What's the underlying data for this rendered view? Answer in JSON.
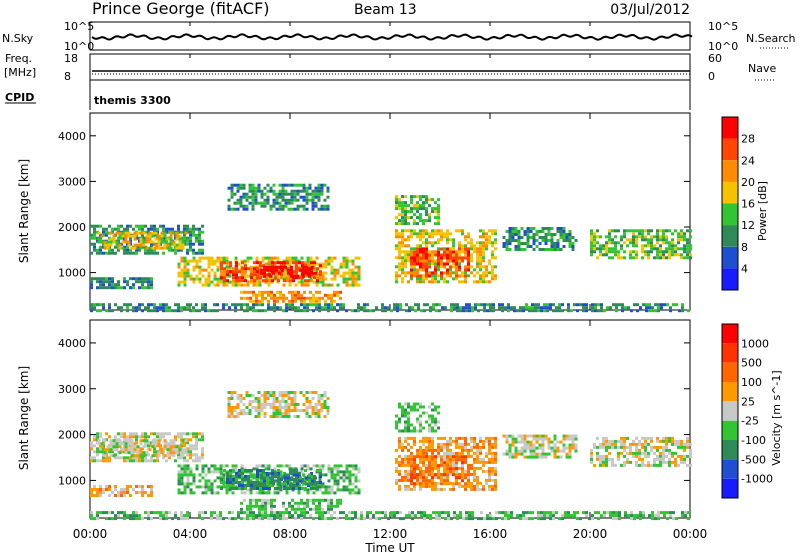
{
  "header": {
    "station": "Prince George (fitACF)",
    "beam": "Beam 13",
    "date": "03/Jul/2012"
  },
  "strips": {
    "nsky_label": "N.Sky",
    "nsky_ticks": [
      "10^5",
      "10^0"
    ],
    "nsearch_label": "N.Search",
    "nsearch_ticks": [
      "10^5",
      "10^0"
    ],
    "freq_label": "Freq.",
    "freq_unit": "[MHz]",
    "freq_ticks": [
      "18",
      "8"
    ],
    "nave_label": "Nave",
    "nave_ticks": [
      "60",
      "0"
    ],
    "cpid_label": "CPID",
    "cpid_value": "themis 3300"
  },
  "colors": {
    "power_scale": [
      "#1a1aff",
      "#1f4fd0",
      "#2e8b57",
      "#33c433",
      "#f5c200",
      "#ff8c00",
      "#ff4500",
      "#ff0000"
    ],
    "velocity_scale": [
      "#1a1aff",
      "#1f4fd0",
      "#2e8b57",
      "#33c433",
      "#c8c8c8",
      "#ff9900",
      "#ff6600",
      "#ff3300",
      "#ff0000"
    ],
    "line": "#000000"
  },
  "chart_data": [
    {
      "type": "heatmap",
      "title": "Power",
      "ylabel": "Slant Range [km]",
      "xlabel": "",
      "x_ticks": [
        "00:00",
        "04:00",
        "08:00",
        "12:00",
        "16:00",
        "20:00",
        "00:00"
      ],
      "y_ticks": [
        "1000",
        "2000",
        "3000",
        "4000"
      ],
      "xlim_hours": [
        0,
        24
      ],
      "ylim_km": [
        180,
        4500
      ],
      "colorbar_label": "Power [dB]",
      "colorbar_ticks": [
        "4",
        "8",
        "12",
        "16",
        "20",
        "24",
        "28"
      ],
      "echo_regions": [
        {
          "t0": 0.0,
          "t1": 24.0,
          "r0": 190,
          "r1": 330,
          "level": 2
        },
        {
          "t0": 0.0,
          "t1": 4.5,
          "r0": 1450,
          "r1": 2050,
          "level": 2
        },
        {
          "t0": 0.3,
          "t1": 3.8,
          "r0": 1550,
          "r1": 1900,
          "level": 4
        },
        {
          "t0": 0.0,
          "t1": 2.5,
          "r0": 650,
          "r1": 900,
          "level": 2
        },
        {
          "t0": 3.5,
          "t1": 10.8,
          "r0": 750,
          "r1": 1350,
          "level": 4
        },
        {
          "t0": 5.2,
          "t1": 9.2,
          "r0": 850,
          "r1": 1250,
          "level": 6
        },
        {
          "t0": 6.8,
          "t1": 9.0,
          "r0": 900,
          "r1": 1150,
          "level": 8
        },
        {
          "t0": 6.0,
          "t1": 10.0,
          "r0": 350,
          "r1": 600,
          "level": 5
        },
        {
          "t0": 5.5,
          "t1": 9.5,
          "r0": 2400,
          "r1": 2950,
          "level": 2
        },
        {
          "t0": 12.2,
          "t1": 16.2,
          "r0": 800,
          "r1": 1950,
          "level": 4
        },
        {
          "t0": 12.8,
          "t1": 15.2,
          "r0": 950,
          "r1": 1550,
          "level": 6
        },
        {
          "t0": 12.2,
          "t1": 14.0,
          "r0": 2100,
          "r1": 2700,
          "level": 3
        },
        {
          "t0": 16.5,
          "t1": 19.5,
          "r0": 1500,
          "r1": 2000,
          "level": 2
        },
        {
          "t0": 20.0,
          "t1": 24.0,
          "r0": 1300,
          "r1": 1950,
          "level": 3
        }
      ]
    },
    {
      "type": "heatmap",
      "title": "Velocity",
      "ylabel": "Slant Range [km]",
      "xlabel": "Time UT",
      "x_ticks": [
        "00:00",
        "04:00",
        "08:00",
        "12:00",
        "16:00",
        "20:00",
        "00:00"
      ],
      "y_ticks": [
        "1000",
        "2000",
        "3000",
        "4000"
      ],
      "xlim_hours": [
        0,
        24
      ],
      "ylim_km": [
        180,
        4500
      ],
      "colorbar_label": "Velocity [m s^-1]",
      "colorbar_ticks": [
        "1000",
        "500",
        "100",
        "25",
        "-25",
        "-100",
        "-500",
        "-1000"
      ],
      "echo_regions": [
        {
          "t0": 0.0,
          "t1": 24.0,
          "r0": 190,
          "r1": 330,
          "level": 3
        },
        {
          "t0": 0.0,
          "t1": 4.5,
          "r0": 1450,
          "r1": 2050,
          "level": 4
        },
        {
          "t0": 0.3,
          "t1": 3.8,
          "r0": 1550,
          "r1": 1900,
          "level": 4
        },
        {
          "t0": 0.0,
          "t1": 2.5,
          "r0": 650,
          "r1": 900,
          "level": 5
        },
        {
          "t0": 3.5,
          "t1": 10.8,
          "r0": 750,
          "r1": 1350,
          "level": 3
        },
        {
          "t0": 5.2,
          "t1": 9.2,
          "r0": 850,
          "r1": 1250,
          "level": 2
        },
        {
          "t0": 6.8,
          "t1": 9.0,
          "r0": 900,
          "r1": 1150,
          "level": 2
        },
        {
          "t0": 6.0,
          "t1": 10.0,
          "r0": 350,
          "r1": 600,
          "level": 3
        },
        {
          "t0": 5.5,
          "t1": 9.5,
          "r0": 2400,
          "r1": 2950,
          "level": 4
        },
        {
          "t0": 12.2,
          "t1": 16.2,
          "r0": 800,
          "r1": 1950,
          "level": 5
        },
        {
          "t0": 12.8,
          "t1": 15.2,
          "r0": 950,
          "r1": 1550,
          "level": 6
        },
        {
          "t0": 12.2,
          "t1": 14.0,
          "r0": 2100,
          "r1": 2700,
          "level": 3
        },
        {
          "t0": 16.5,
          "t1": 19.5,
          "r0": 1500,
          "r1": 2000,
          "level": 4
        },
        {
          "t0": 20.0,
          "t1": 24.0,
          "r0": 1300,
          "r1": 1950,
          "level": 4
        }
      ]
    }
  ]
}
